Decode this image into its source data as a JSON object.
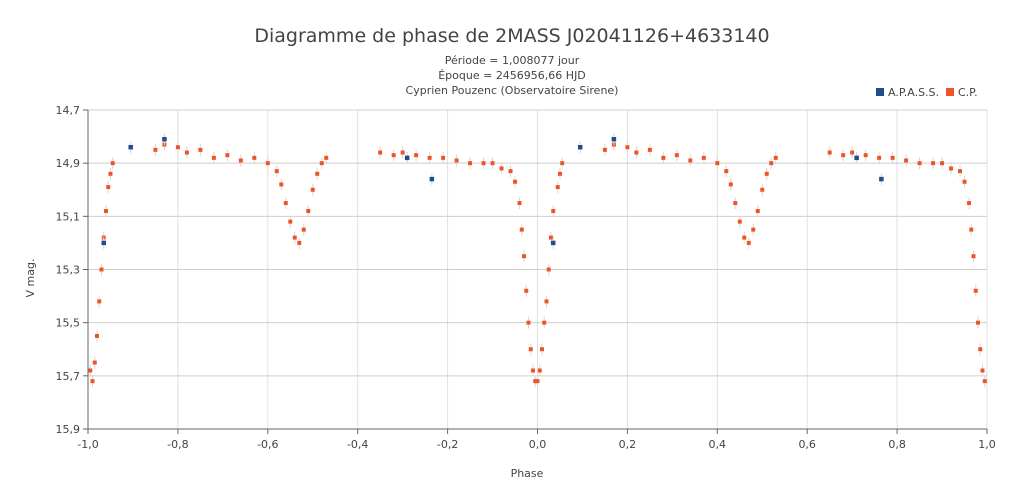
{
  "chart_data": {
    "type": "scatter",
    "title": "Diagramme de phase de 2MASS J02041126+4633140",
    "subtitle_lines": [
      "Période = 1,008077 jour",
      "Époque = 2456956,66 HJD",
      "Cyprien Pouzenc (Observatoire Sirene)"
    ],
    "xlabel": "Phase",
    "ylabel": "V mag.",
    "xlim": [
      -1.0,
      1.0
    ],
    "ylim": [
      14.7,
      15.9
    ],
    "y_reversed": true,
    "x_ticks": [
      "-1,0",
      "-0,8",
      "-0,6",
      "-0,4",
      "-0,2",
      "0,0",
      "0,2",
      "0,4",
      "0,6",
      "0,8",
      "1,0"
    ],
    "y_ticks": [
      "14,7",
      "14,9",
      "15,1",
      "15,3",
      "15,5",
      "15,7",
      "15,9"
    ],
    "grid": true,
    "legend_position": "top-right",
    "series": [
      {
        "name": "A.P.A.S.S.",
        "color": "#1f4e8c",
        "marker": "square",
        "points": [
          [
            -0.965,
            15.2
          ],
          [
            -0.905,
            14.84
          ],
          [
            -0.83,
            14.81
          ],
          [
            -0.29,
            14.88
          ],
          [
            -0.235,
            14.96
          ],
          [
            0.035,
            15.2
          ],
          [
            0.095,
            14.84
          ],
          [
            0.17,
            14.81
          ],
          [
            0.71,
            14.88
          ],
          [
            0.765,
            14.96
          ]
        ]
      },
      {
        "name": "C.P.",
        "color": "#f0532a",
        "marker": "square",
        "points": [
          [
            -0.995,
            15.68
          ],
          [
            -0.99,
            15.72
          ],
          [
            -0.985,
            15.65
          ],
          [
            -0.98,
            15.55
          ],
          [
            -0.975,
            15.42
          ],
          [
            -0.97,
            15.3
          ],
          [
            -0.965,
            15.18
          ],
          [
            -0.96,
            15.08
          ],
          [
            -0.955,
            14.99
          ],
          [
            -0.95,
            14.94
          ],
          [
            -0.945,
            14.9
          ],
          [
            -0.85,
            14.85
          ],
          [
            -0.83,
            14.83
          ],
          [
            -0.8,
            14.84
          ],
          [
            -0.78,
            14.86
          ],
          [
            -0.75,
            14.85
          ],
          [
            -0.72,
            14.88
          ],
          [
            -0.69,
            14.87
          ],
          [
            -0.66,
            14.89
          ],
          [
            -0.63,
            14.88
          ],
          [
            -0.6,
            14.9
          ],
          [
            -0.58,
            14.93
          ],
          [
            -0.57,
            14.98
          ],
          [
            -0.56,
            15.05
          ],
          [
            -0.55,
            15.12
          ],
          [
            -0.54,
            15.18
          ],
          [
            -0.53,
            15.2
          ],
          [
            -0.52,
            15.15
          ],
          [
            -0.51,
            15.08
          ],
          [
            -0.5,
            15.0
          ],
          [
            -0.49,
            14.94
          ],
          [
            -0.48,
            14.9
          ],
          [
            -0.47,
            14.88
          ],
          [
            -0.35,
            14.86
          ],
          [
            -0.32,
            14.87
          ],
          [
            -0.3,
            14.86
          ],
          [
            -0.27,
            14.87
          ],
          [
            -0.24,
            14.88
          ],
          [
            -0.21,
            14.88
          ],
          [
            -0.18,
            14.89
          ],
          [
            -0.15,
            14.9
          ],
          [
            -0.12,
            14.9
          ],
          [
            -0.1,
            14.9
          ],
          [
            -0.08,
            14.92
          ],
          [
            -0.06,
            14.93
          ],
          [
            -0.05,
            14.97
          ],
          [
            -0.04,
            15.05
          ],
          [
            -0.035,
            15.15
          ],
          [
            -0.03,
            15.25
          ],
          [
            -0.025,
            15.38
          ],
          [
            -0.02,
            15.5
          ],
          [
            -0.015,
            15.6
          ],
          [
            -0.01,
            15.68
          ],
          [
            -0.005,
            15.72
          ],
          [
            0.0,
            15.72
          ],
          [
            0.005,
            15.68
          ],
          [
            0.01,
            15.6
          ],
          [
            0.015,
            15.5
          ],
          [
            0.02,
            15.42
          ],
          [
            0.025,
            15.3
          ],
          [
            0.03,
            15.18
          ],
          [
            0.035,
            15.08
          ],
          [
            0.045,
            14.99
          ],
          [
            0.05,
            14.94
          ],
          [
            0.055,
            14.9
          ],
          [
            0.15,
            14.85
          ],
          [
            0.17,
            14.83
          ],
          [
            0.2,
            14.84
          ],
          [
            0.22,
            14.86
          ],
          [
            0.25,
            14.85
          ],
          [
            0.28,
            14.88
          ],
          [
            0.31,
            14.87
          ],
          [
            0.34,
            14.89
          ],
          [
            0.37,
            14.88
          ],
          [
            0.4,
            14.9
          ],
          [
            0.42,
            14.93
          ],
          [
            0.43,
            14.98
          ],
          [
            0.44,
            15.05
          ],
          [
            0.45,
            15.12
          ],
          [
            0.46,
            15.18
          ],
          [
            0.47,
            15.2
          ],
          [
            0.48,
            15.15
          ],
          [
            0.49,
            15.08
          ],
          [
            0.5,
            15.0
          ],
          [
            0.51,
            14.94
          ],
          [
            0.52,
            14.9
          ],
          [
            0.53,
            14.88
          ],
          [
            0.65,
            14.86
          ],
          [
            0.68,
            14.87
          ],
          [
            0.7,
            14.86
          ],
          [
            0.73,
            14.87
          ],
          [
            0.76,
            14.88
          ],
          [
            0.79,
            14.88
          ],
          [
            0.82,
            14.89
          ],
          [
            0.85,
            14.9
          ],
          [
            0.88,
            14.9
          ],
          [
            0.9,
            14.9
          ],
          [
            0.92,
            14.92
          ],
          [
            0.94,
            14.93
          ],
          [
            0.95,
            14.97
          ],
          [
            0.96,
            15.05
          ],
          [
            0.965,
            15.15
          ],
          [
            0.97,
            15.25
          ],
          [
            0.975,
            15.38
          ],
          [
            0.98,
            15.5
          ],
          [
            0.985,
            15.6
          ],
          [
            0.99,
            15.68
          ],
          [
            0.995,
            15.72
          ]
        ]
      }
    ]
  }
}
